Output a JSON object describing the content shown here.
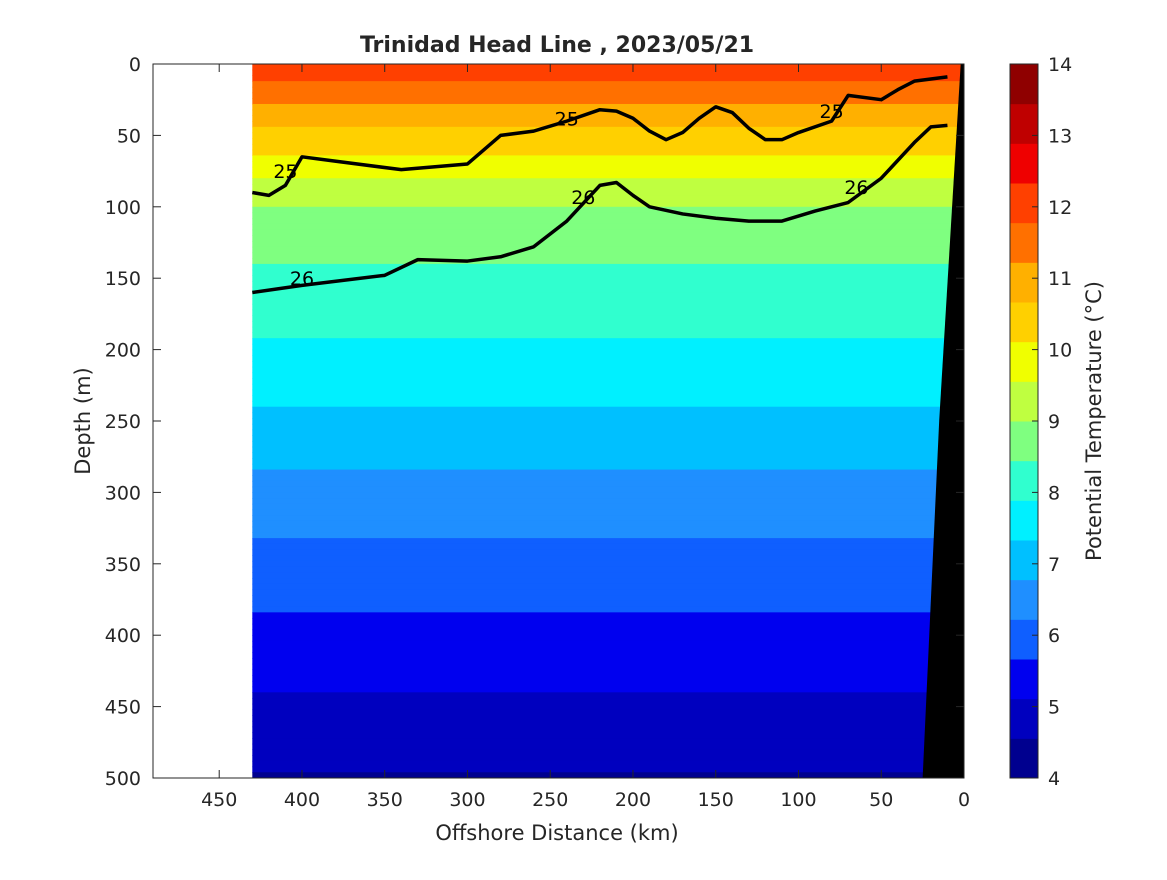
{
  "chart_data": {
    "type": "filled-contour",
    "title": "Trinidad Head Line , 2023/05/21",
    "xlabel": "Offshore Distance (km)",
    "ylabel": "Depth (m)",
    "colorbar_label": "Potential Temperature (°C)",
    "xlim": [
      490,
      0
    ],
    "ylim": [
      0,
      500
    ],
    "y_reversed": true,
    "x_ticks": [
      "450",
      "400",
      "350",
      "300",
      "250",
      "200",
      "150",
      "100",
      "50",
      "0"
    ],
    "y_ticks": [
      "0",
      "50",
      "100",
      "150",
      "200",
      "250",
      "300",
      "350",
      "400",
      "450",
      "500"
    ],
    "colorbar_ticks": [
      "4",
      "5",
      "6",
      "7",
      "8",
      "9",
      "10",
      "11",
      "12",
      "13",
      "14"
    ],
    "colorbar_range": [
      4,
      14
    ],
    "colorbar_colors": [
      "#00008f",
      "#0000bf",
      "#0000ef",
      "#0f5fff",
      "#1f8fff",
      "#00c0ff",
      "#00f0ff",
      "#30ffcf",
      "#7fff80",
      "#bfff40",
      "#f0ff00",
      "#ffd000",
      "#ffb000",
      "#ff7000",
      "#ff4000",
      "#ef0000",
      "#bf0000",
      "#8f0000"
    ],
    "data_x_range": [
      430,
      0
    ],
    "temperature_depth_profile": [
      {
        "depth": 0,
        "temp": 12.2
      },
      {
        "depth": 50,
        "temp": 10.5
      },
      {
        "depth": 100,
        "temp": 9.0
      },
      {
        "depth": 150,
        "temp": 8.3
      },
      {
        "depth": 200,
        "temp": 7.8
      },
      {
        "depth": 250,
        "temp": 7.2
      },
      {
        "depth": 300,
        "temp": 6.6
      },
      {
        "depth": 350,
        "temp": 6.0
      },
      {
        "depth": 400,
        "temp": 5.5
      },
      {
        "depth": 450,
        "temp": 5.0
      },
      {
        "depth": 500,
        "temp": 4.5
      }
    ],
    "density_contours": [
      {
        "label": "25",
        "points": [
          [
            430,
            90
          ],
          [
            420,
            92
          ],
          [
            410,
            85
          ],
          [
            400,
            65
          ],
          [
            380,
            68
          ],
          [
            340,
            74
          ],
          [
            300,
            70
          ],
          [
            290,
            60
          ],
          [
            280,
            50
          ],
          [
            260,
            47
          ],
          [
            240,
            40
          ],
          [
            220,
            32
          ],
          [
            210,
            33
          ],
          [
            200,
            38
          ],
          [
            190,
            47
          ],
          [
            180,
            53
          ],
          [
            170,
            48
          ],
          [
            160,
            38
          ],
          [
            150,
            30
          ],
          [
            140,
            34
          ],
          [
            130,
            45
          ],
          [
            120,
            53
          ],
          [
            110,
            53
          ],
          [
            100,
            48
          ],
          [
            80,
            40
          ],
          [
            70,
            22
          ],
          [
            50,
            25
          ],
          [
            40,
            18
          ],
          [
            30,
            12
          ],
          [
            10,
            9
          ]
        ],
        "label_positions": [
          [
            410,
            75
          ],
          [
            240,
            38
          ],
          [
            80,
            33
          ]
        ]
      },
      {
        "label": "26",
        "points": [
          [
            430,
            160
          ],
          [
            400,
            155
          ],
          [
            350,
            148
          ],
          [
            330,
            137
          ],
          [
            300,
            138
          ],
          [
            280,
            135
          ],
          [
            260,
            128
          ],
          [
            240,
            110
          ],
          [
            220,
            85
          ],
          [
            210,
            83
          ],
          [
            200,
            92
          ],
          [
            190,
            100
          ],
          [
            170,
            105
          ],
          [
            150,
            108
          ],
          [
            130,
            110
          ],
          [
            110,
            110
          ],
          [
            90,
            103
          ],
          [
            70,
            97
          ],
          [
            50,
            80
          ],
          [
            30,
            55
          ],
          [
            20,
            44
          ],
          [
            10,
            43
          ]
        ],
        "label_positions": [
          [
            400,
            150
          ],
          [
            230,
            93
          ],
          [
            65,
            86
          ]
        ]
      }
    ]
  }
}
